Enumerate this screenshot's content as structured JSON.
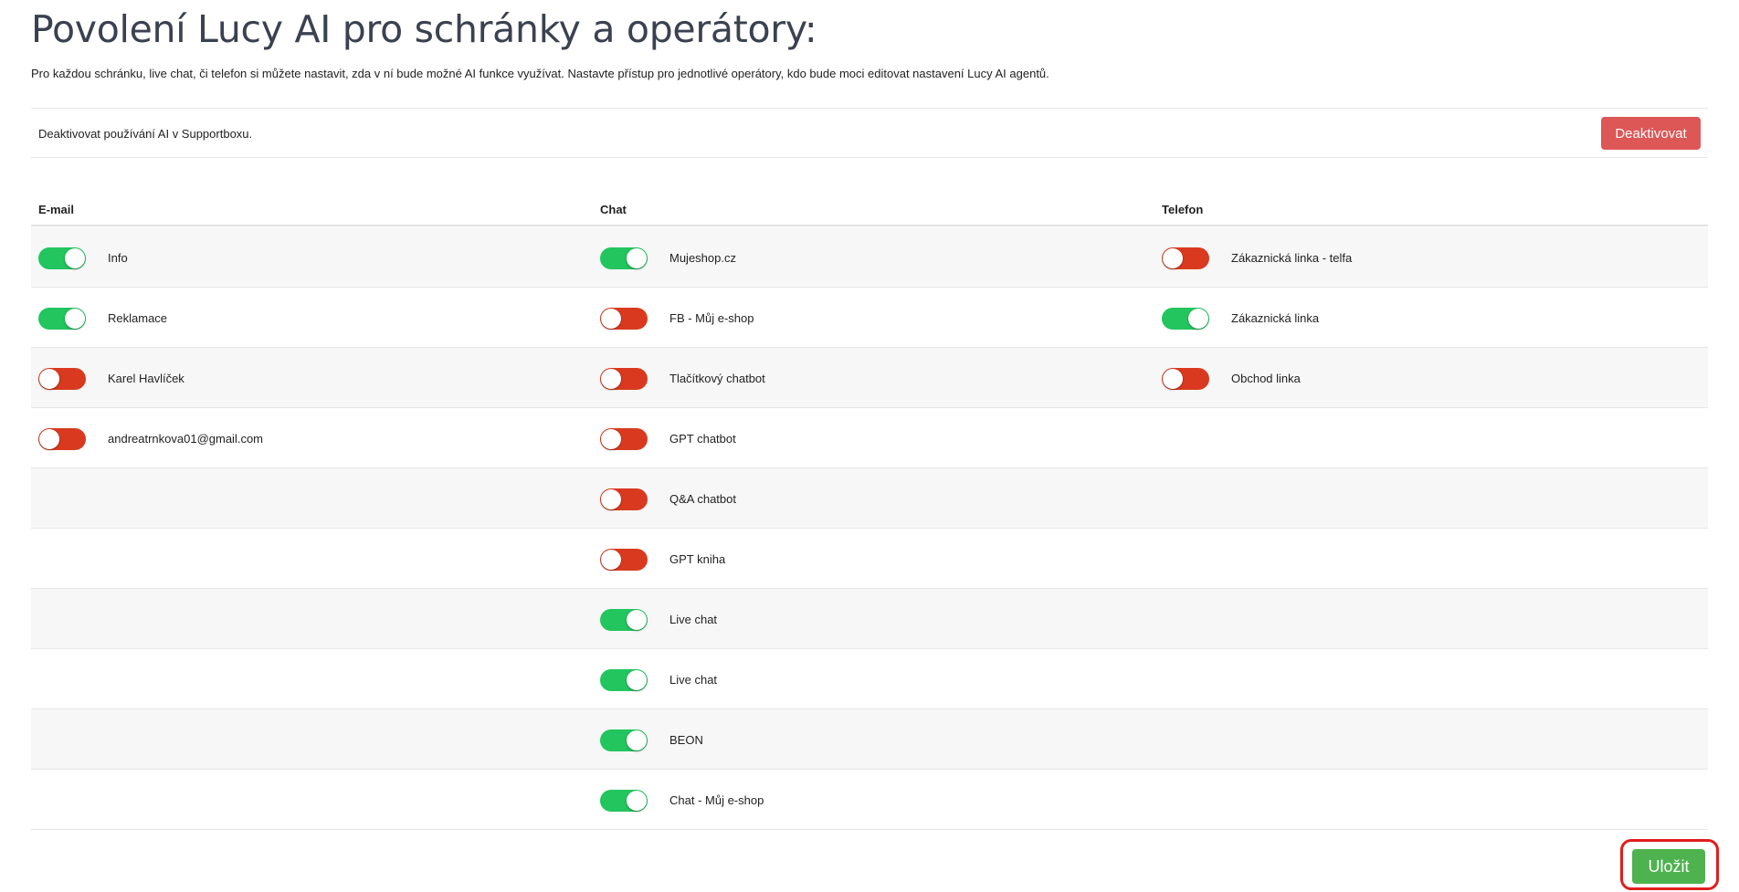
{
  "header": {
    "title": "Povolení Lucy AI pro schránky a operátory:",
    "description": "Pro každou schránku, live chat, či telefon si můžete nastavit, zda v ní bude možné AI funkce využívat. Nastavte přístup pro jednotlivé operátory, kdo bude moci editovat nastavení Lucy AI agentů."
  },
  "deactivate": {
    "label": "Deaktivovat používání AI v Supportboxu.",
    "button_label": "Deaktivovat"
  },
  "columns": {
    "email": {
      "header": "E-mail"
    },
    "chat": {
      "header": "Chat"
    },
    "phone": {
      "header": "Telefon"
    }
  },
  "rows": [
    {
      "email": {
        "label": "Info",
        "enabled": true
      },
      "chat": {
        "label": "Mujeshop.cz",
        "enabled": true
      },
      "phone": {
        "label": "Zákaznická linka - telfa",
        "enabled": false
      }
    },
    {
      "email": {
        "label": "Reklamace",
        "enabled": true
      },
      "chat": {
        "label": "FB - Můj e-shop",
        "enabled": false
      },
      "phone": {
        "label": "Zákaznická linka",
        "enabled": true
      }
    },
    {
      "email": {
        "label": "Karel Havlíček",
        "enabled": false
      },
      "chat": {
        "label": "Tlačítkový chatbot",
        "enabled": false
      },
      "phone": {
        "label": "Obchod linka",
        "enabled": false
      }
    },
    {
      "email": {
        "label": "andreatrnkova01@gmail.com",
        "enabled": false
      },
      "chat": {
        "label": "GPT chatbot",
        "enabled": false
      },
      "phone": null
    },
    {
      "email": null,
      "chat": {
        "label": "Q&A chatbot",
        "enabled": false
      },
      "phone": null
    },
    {
      "email": null,
      "chat": {
        "label": "GPT kniha",
        "enabled": false
      },
      "phone": null
    },
    {
      "email": null,
      "chat": {
        "label": "Live chat",
        "enabled": true
      },
      "phone": null
    },
    {
      "email": null,
      "chat": {
        "label": "Live chat",
        "enabled": true
      },
      "phone": null
    },
    {
      "email": null,
      "chat": {
        "label": "BEON",
        "enabled": true
      },
      "phone": null
    },
    {
      "email": null,
      "chat": {
        "label": "Chat - Můj e-shop",
        "enabled": true
      },
      "phone": null
    }
  ],
  "footer": {
    "save_label": "Uložit"
  },
  "colors": {
    "toggle_on": "#22c55e",
    "toggle_off": "#d93a1f",
    "deactivate_button": "#dd5757",
    "save_button": "#4eb34f",
    "save_highlight": "#e11d1d"
  }
}
